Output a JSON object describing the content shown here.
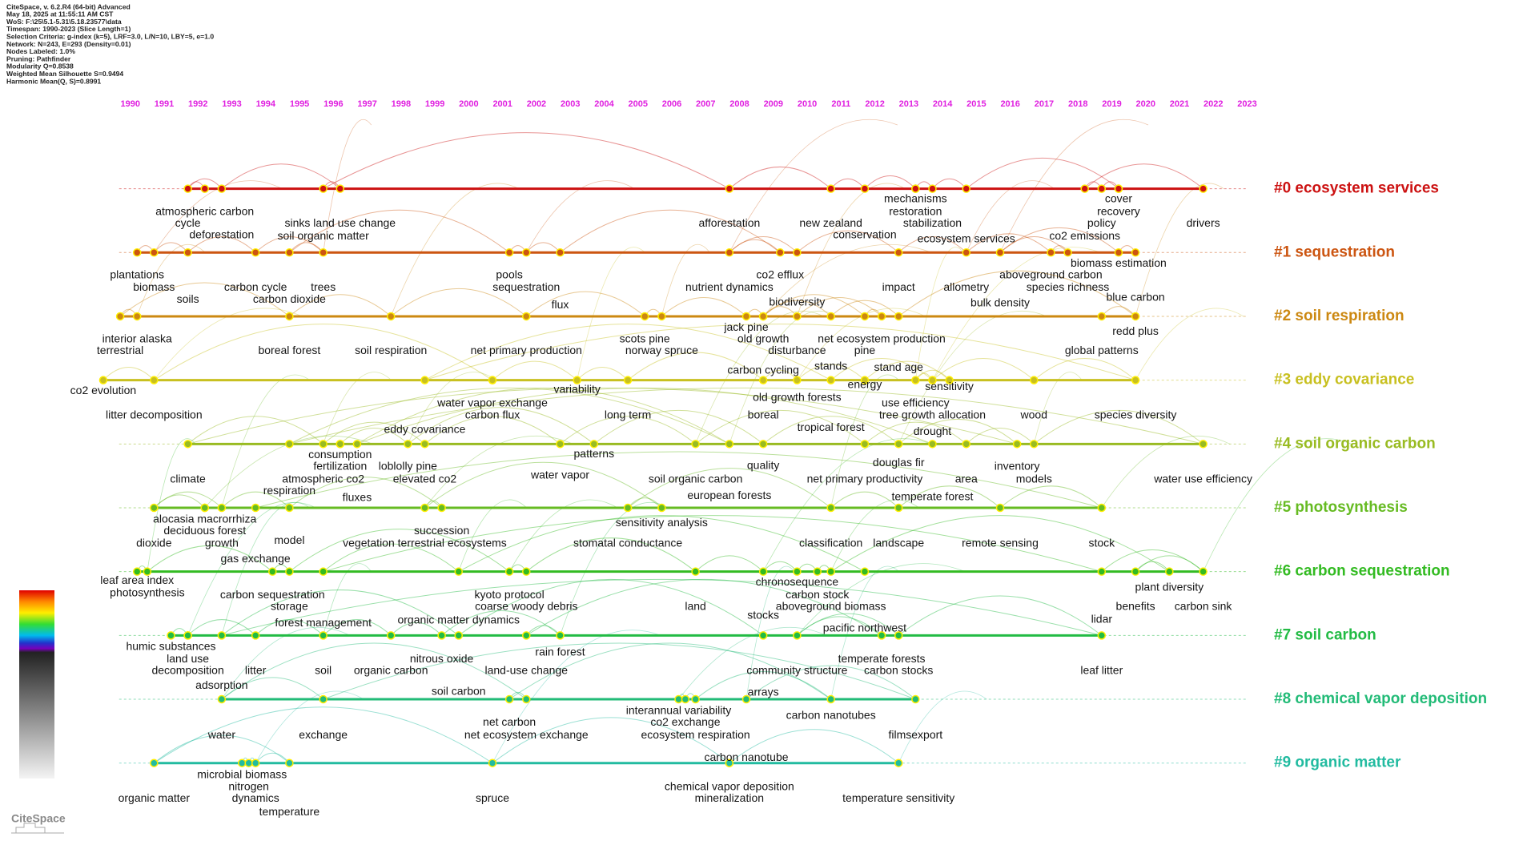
{
  "header": {
    "lines": [
      "CiteSpace, v. 6.2.R4 (64-bit) Advanced",
      "May 18, 2025 at 11:55:11 AM CST",
      "WoS: F:\\25\\5.1-5.31\\5.18.23577\\data",
      "Timespan: 1990-2023 (Slice Length=1)",
      "Selection Criteria: g-index (k=5), LRF=3.0, L/N=10, LBY=5, e=1.0",
      "Network: N=243, E=293 (Density=0.01)",
      "Nodes Labeled: 1.0%",
      "Pruning: Pathfinder",
      "Modularity Q=0.8538",
      "Weighted Mean Silhouette S=0.9494",
      "Harmonic Mean(Q, S)=0.8991"
    ]
  },
  "timeline": {
    "years": [
      1990,
      1991,
      1992,
      1993,
      1994,
      1995,
      1996,
      1997,
      1998,
      1999,
      2000,
      2001,
      2002,
      2003,
      2004,
      2005,
      2006,
      2007,
      2008,
      2009,
      2010,
      2011,
      2012,
      2013,
      2014,
      2015,
      2016,
      2017,
      2018,
      2019,
      2020,
      2021,
      2022,
      2023
    ],
    "clusters": [
      {
        "label": "#0 ecosystem services",
        "color": "#cc1111"
      },
      {
        "label": "#1 sequestration",
        "color": "#cc5511"
      },
      {
        "label": "#2 soil respiration",
        "color": "#cc8811"
      },
      {
        "label": "#3 eddy covariance",
        "color": "#c8c020"
      },
      {
        "label": "#4 soil organic carbon",
        "color": "#99bb22"
      },
      {
        "label": "#5 photosynthesis",
        "color": "#66bb22"
      },
      {
        "label": "#6 carbon sequestration",
        "color": "#33bb22"
      },
      {
        "label": "#7 soil carbon",
        "color": "#22bb44"
      },
      {
        "label": "#8 chemical vapor deposition",
        "color": "#22bb77"
      },
      {
        "label": "#9 organic matter",
        "color": "#22bba0"
      }
    ],
    "nodes": [
      {
        "label": "atmospheric carbon",
        "year": 1992.2,
        "cluster": 0
      },
      {
        "label": "cycle",
        "year": 1991.7,
        "cluster": 0
      },
      {
        "label": "deforestation",
        "year": 1992.7,
        "cluster": 0
      },
      {
        "label": "sinks land use change",
        "year": 1996.2,
        "cluster": 0
      },
      {
        "label": "soil organic matter",
        "year": 1995.7,
        "cluster": 0
      },
      {
        "label": "afforestation",
        "year": 2007.7,
        "cluster": 0
      },
      {
        "label": "new zealand",
        "year": 2010.7,
        "cluster": 0
      },
      {
        "label": "conservation",
        "year": 2011.7,
        "cluster": 0
      },
      {
        "label": "mechanisms",
        "year": 2013.2,
        "cluster": 0
      },
      {
        "label": "restoration",
        "year": 2013.2,
        "cluster": 0
      },
      {
        "label": "stabilization",
        "year": 2013.7,
        "cluster": 0
      },
      {
        "label": "ecosystem services",
        "year": 2014.7,
        "cluster": 0
      },
      {
        "label": "cover",
        "year": 2019.2,
        "cluster": 0
      },
      {
        "label": "recovery",
        "year": 2019.2,
        "cluster": 0
      },
      {
        "label": "policy",
        "year": 2018.7,
        "cluster": 0
      },
      {
        "label": "co2 emissions",
        "year": 2018.2,
        "cluster": 0
      },
      {
        "label": "drivers",
        "year": 2021.7,
        "cluster": 0
      },
      {
        "label": "plantations",
        "year": 1990.2,
        "cluster": 1
      },
      {
        "label": "biomass",
        "year": 1990.7,
        "cluster": 1
      },
      {
        "label": "soils",
        "year": 1991.7,
        "cluster": 1
      },
      {
        "label": "carbon cycle",
        "year": 1993.7,
        "cluster": 1
      },
      {
        "label": "trees",
        "year": 1995.7,
        "cluster": 1
      },
      {
        "label": "carbon dioxide",
        "year": 1994.7,
        "cluster": 1
      },
      {
        "label": "pools",
        "year": 2001.2,
        "cluster": 1
      },
      {
        "label": "sequestration",
        "year": 2001.7,
        "cluster": 1
      },
      {
        "label": "flux",
        "year": 2002.7,
        "cluster": 1
      },
      {
        "label": "co2 efflux",
        "year": 2009.2,
        "cluster": 1
      },
      {
        "label": "nutrient dynamics",
        "year": 2007.7,
        "cluster": 1
      },
      {
        "label": "biodiversity",
        "year": 2009.7,
        "cluster": 1
      },
      {
        "label": "impact",
        "year": 2012.7,
        "cluster": 1
      },
      {
        "label": "allometry",
        "year": 2014.7,
        "cluster": 1
      },
      {
        "label": "aboveground carbon",
        "year": 2017.2,
        "cluster": 1
      },
      {
        "label": "species richness",
        "year": 2017.7,
        "cluster": 1
      },
      {
        "label": "bulk density",
        "year": 2015.7,
        "cluster": 1
      },
      {
        "label": "biomass estimation",
        "year": 2019.2,
        "cluster": 1
      },
      {
        "label": "blue carbon",
        "year": 2019.7,
        "cluster": 1
      },
      {
        "label": "interior alaska",
        "year": 1990.2,
        "cluster": 2
      },
      {
        "label": "terrestrial",
        "year": 1989.7,
        "cluster": 2
      },
      {
        "label": "boreal forest",
        "year": 1994.7,
        "cluster": 2
      },
      {
        "label": "soil respiration",
        "year": 1997.7,
        "cluster": 2
      },
      {
        "label": "net primary production",
        "year": 2001.7,
        "cluster": 2
      },
      {
        "label": "scots pine",
        "year": 2005.2,
        "cluster": 2
      },
      {
        "label": "norway spruce",
        "year": 2005.7,
        "cluster": 2
      },
      {
        "label": "jack pine",
        "year": 2008.2,
        "cluster": 2
      },
      {
        "label": "old growth",
        "year": 2008.7,
        "cluster": 2
      },
      {
        "label": "disturbance",
        "year": 2009.7,
        "cluster": 2
      },
      {
        "label": "net ecosystem production",
        "year": 2012.2,
        "cluster": 2
      },
      {
        "label": "pine",
        "year": 2011.7,
        "cluster": 2
      },
      {
        "label": "carbon cycling",
        "year": 2008.7,
        "cluster": 2
      },
      {
        "label": "stands",
        "year": 2010.7,
        "cluster": 2
      },
      {
        "label": "stand age",
        "year": 2012.7,
        "cluster": 2
      },
      {
        "label": "redd plus",
        "year": 2019.7,
        "cluster": 2
      },
      {
        "label": "global patterns",
        "year": 2018.7,
        "cluster": 2
      },
      {
        "label": "co2 evolution",
        "year": 1989.2,
        "cluster": 3
      },
      {
        "label": "litter decomposition",
        "year": 1990.7,
        "cluster": 3
      },
      {
        "label": "water vapor exchange",
        "year": 2000.7,
        "cluster": 3
      },
      {
        "label": "carbon flux",
        "year": 2000.7,
        "cluster": 3
      },
      {
        "label": "variability",
        "year": 2003.2,
        "cluster": 3
      },
      {
        "label": "long term",
        "year": 2004.7,
        "cluster": 3
      },
      {
        "label": "boreal",
        "year": 2008.7,
        "cluster": 3
      },
      {
        "label": "old growth forests",
        "year": 2009.7,
        "cluster": 3
      },
      {
        "label": "energy",
        "year": 2011.7,
        "cluster": 3
      },
      {
        "label": "sensitivity",
        "year": 2014.2,
        "cluster": 3
      },
      {
        "label": "use efficiency",
        "year": 2013.2,
        "cluster": 3
      },
      {
        "label": "tree growth allocation",
        "year": 2013.7,
        "cluster": 3
      },
      {
        "label": "wood",
        "year": 2016.7,
        "cluster": 3
      },
      {
        "label": "species diversity",
        "year": 2019.7,
        "cluster": 3
      },
      {
        "label": "eddy covariance",
        "year": 1998.7,
        "cluster": 3
      },
      {
        "label": "tropical forest",
        "year": 2010.7,
        "cluster": 3
      },
      {
        "label": "drought",
        "year": 2013.7,
        "cluster": 3
      },
      {
        "label": "consumption",
        "year": 1996.2,
        "cluster": 4
      },
      {
        "label": "fertilization",
        "year": 1996.2,
        "cluster": 4
      },
      {
        "label": "loblolly pine",
        "year": 1998.2,
        "cluster": 4
      },
      {
        "label": "patterns",
        "year": 2003.7,
        "cluster": 4
      },
      {
        "label": "quality",
        "year": 2008.7,
        "cluster": 4
      },
      {
        "label": "douglas fir",
        "year": 2012.7,
        "cluster": 4
      },
      {
        "label": "inventory",
        "year": 2016.2,
        "cluster": 4
      },
      {
        "label": "climate",
        "year": 1991.7,
        "cluster": 4
      },
      {
        "label": "atmospheric co2",
        "year": 1995.7,
        "cluster": 4
      },
      {
        "label": "elevated co2",
        "year": 1998.7,
        "cluster": 4
      },
      {
        "label": "water vapor",
        "year": 2002.7,
        "cluster": 4
      },
      {
        "label": "soil organic carbon",
        "year": 2006.7,
        "cluster": 4
      },
      {
        "label": "net primary productivity",
        "year": 2011.7,
        "cluster": 4
      },
      {
        "label": "area",
        "year": 2014.7,
        "cluster": 4
      },
      {
        "label": "models",
        "year": 2016.7,
        "cluster": 4
      },
      {
        "label": "water use efficiency",
        "year": 2021.7,
        "cluster": 4
      },
      {
        "label": "respiration",
        "year": 1994.7,
        "cluster": 4
      },
      {
        "label": "european forests",
        "year": 2007.7,
        "cluster": 4
      },
      {
        "label": "fluxes",
        "year": 1996.7,
        "cluster": 4
      },
      {
        "label": "temperate forest",
        "year": 2013.7,
        "cluster": 4
      },
      {
        "label": "alocasia macrorrhiza",
        "year": 1992.2,
        "cluster": 5
      },
      {
        "label": "deciduous forest",
        "year": 1992.2,
        "cluster": 5
      },
      {
        "label": "dioxide",
        "year": 1990.7,
        "cluster": 5
      },
      {
        "label": "growth",
        "year": 1992.7,
        "cluster": 5
      },
      {
        "label": "model",
        "year": 1994.7,
        "cluster": 5
      },
      {
        "label": "succession",
        "year": 1999.2,
        "cluster": 5
      },
      {
        "label": "vegetation terrestrial ecosystems",
        "year": 1998.7,
        "cluster": 5
      },
      {
        "label": "sensitivity analysis",
        "year": 2005.7,
        "cluster": 5
      },
      {
        "label": "stomatal conductance",
        "year": 2004.7,
        "cluster": 5
      },
      {
        "label": "classification",
        "year": 2010.7,
        "cluster": 5
      },
      {
        "label": "landscape",
        "year": 2012.7,
        "cluster": 5
      },
      {
        "label": "remote sensing",
        "year": 2015.7,
        "cluster": 5
      },
      {
        "label": "stock",
        "year": 2018.7,
        "cluster": 5
      },
      {
        "label": "gas exchange",
        "year": 1993.7,
        "cluster": 5
      },
      {
        "label": "leaf area index",
        "year": 1990.2,
        "cluster": 6
      },
      {
        "label": "photosynthesis",
        "year": 1990.5,
        "cluster": 6
      },
      {
        "label": "carbon sequestration",
        "year": 1994.2,
        "cluster": 6
      },
      {
        "label": "storage",
        "year": 1994.7,
        "cluster": 6
      },
      {
        "label": "kyoto protocol",
        "year": 2001.2,
        "cluster": 6
      },
      {
        "label": "coarse woody debris",
        "year": 2001.7,
        "cluster": 6
      },
      {
        "label": "land",
        "year": 2006.7,
        "cluster": 6
      },
      {
        "label": "stocks",
        "year": 2008.7,
        "cluster": 6
      },
      {
        "label": "chronosequence",
        "year": 2009.7,
        "cluster": 6
      },
      {
        "label": "carbon stock",
        "year": 2010.3,
        "cluster": 6
      },
      {
        "label": "aboveground biomass",
        "year": 2010.7,
        "cluster": 6
      },
      {
        "label": "plant diversity",
        "year": 2020.7,
        "cluster": 6
      },
      {
        "label": "benefits",
        "year": 2019.7,
        "cluster": 6
      },
      {
        "label": "carbon sink",
        "year": 2021.7,
        "cluster": 6
      },
      {
        "label": "lidar",
        "year": 2018.7,
        "cluster": 6
      },
      {
        "label": "forest management",
        "year": 1995.7,
        "cluster": 6
      },
      {
        "label": "organic matter dynamics",
        "year": 1999.7,
        "cluster": 6
      },
      {
        "label": "pacific northwest",
        "year": 2011.7,
        "cluster": 6
      },
      {
        "label": "humic substances",
        "year": 1991.2,
        "cluster": 7
      },
      {
        "label": "land use",
        "year": 1991.7,
        "cluster": 7
      },
      {
        "label": "decomposition",
        "year": 1991.7,
        "cluster": 7
      },
      {
        "label": "litter",
        "year": 1993.7,
        "cluster": 7
      },
      {
        "label": "soil",
        "year": 1995.7,
        "cluster": 7
      },
      {
        "label": "organic carbon",
        "year": 1997.7,
        "cluster": 7
      },
      {
        "label": "nitrous oxide",
        "year": 1999.2,
        "cluster": 7
      },
      {
        "label": "rain forest",
        "year": 2002.7,
        "cluster": 7
      },
      {
        "label": "land-use change",
        "year": 2001.7,
        "cluster": 7
      },
      {
        "label": "temperate forests",
        "year": 2012.2,
        "cluster": 7
      },
      {
        "label": "community structure",
        "year": 2009.7,
        "cluster": 7
      },
      {
        "label": "carbon stocks",
        "year": 2012.7,
        "cluster": 7
      },
      {
        "label": "leaf litter",
        "year": 2018.7,
        "cluster": 7
      },
      {
        "label": "adsorption",
        "year": 1992.7,
        "cluster": 7
      },
      {
        "label": "soil carbon",
        "year": 1999.7,
        "cluster": 7
      },
      {
        "label": "arrays",
        "year": 2008.7,
        "cluster": 7
      },
      {
        "label": "interannual variability",
        "year": 2006.2,
        "cluster": 8
      },
      {
        "label": "co2 exchange",
        "year": 2006.4,
        "cluster": 8
      },
      {
        "label": "ecosystem respiration",
        "year": 2006.7,
        "cluster": 8
      },
      {
        "label": "carbon nanotubes",
        "year": 2010.7,
        "cluster": 8
      },
      {
        "label": "net carbon",
        "year": 2001.2,
        "cluster": 8
      },
      {
        "label": "net ecosystem exchange",
        "year": 2001.7,
        "cluster": 8
      },
      {
        "label": "water",
        "year": 1992.7,
        "cluster": 8
      },
      {
        "label": "exchange",
        "year": 1995.7,
        "cluster": 8
      },
      {
        "label": "filmsexport",
        "year": 2013.2,
        "cluster": 8
      },
      {
        "label": "carbon nanotube",
        "year": 2008.2,
        "cluster": 8
      },
      {
        "label": "microbial biomass",
        "year": 1993.3,
        "cluster": 9
      },
      {
        "label": "nitrogen",
        "year": 1993.5,
        "cluster": 9
      },
      {
        "label": "dynamics",
        "year": 1993.7,
        "cluster": 9
      },
      {
        "label": "temperature",
        "year": 1994.7,
        "cluster": 9
      },
      {
        "label": "organic matter",
        "year": 1990.7,
        "cluster": 9
      },
      {
        "label": "spruce",
        "year": 2000.7,
        "cluster": 9
      },
      {
        "label": "chemical vapor deposition",
        "year": 2007.7,
        "cluster": 9
      },
      {
        "label": "mineralization",
        "year": 2007.7,
        "cluster": 9
      },
      {
        "label": "temperature sensitivity",
        "year": 2012.7,
        "cluster": 9
      }
    ]
  },
  "logo": "CiteSpace"
}
